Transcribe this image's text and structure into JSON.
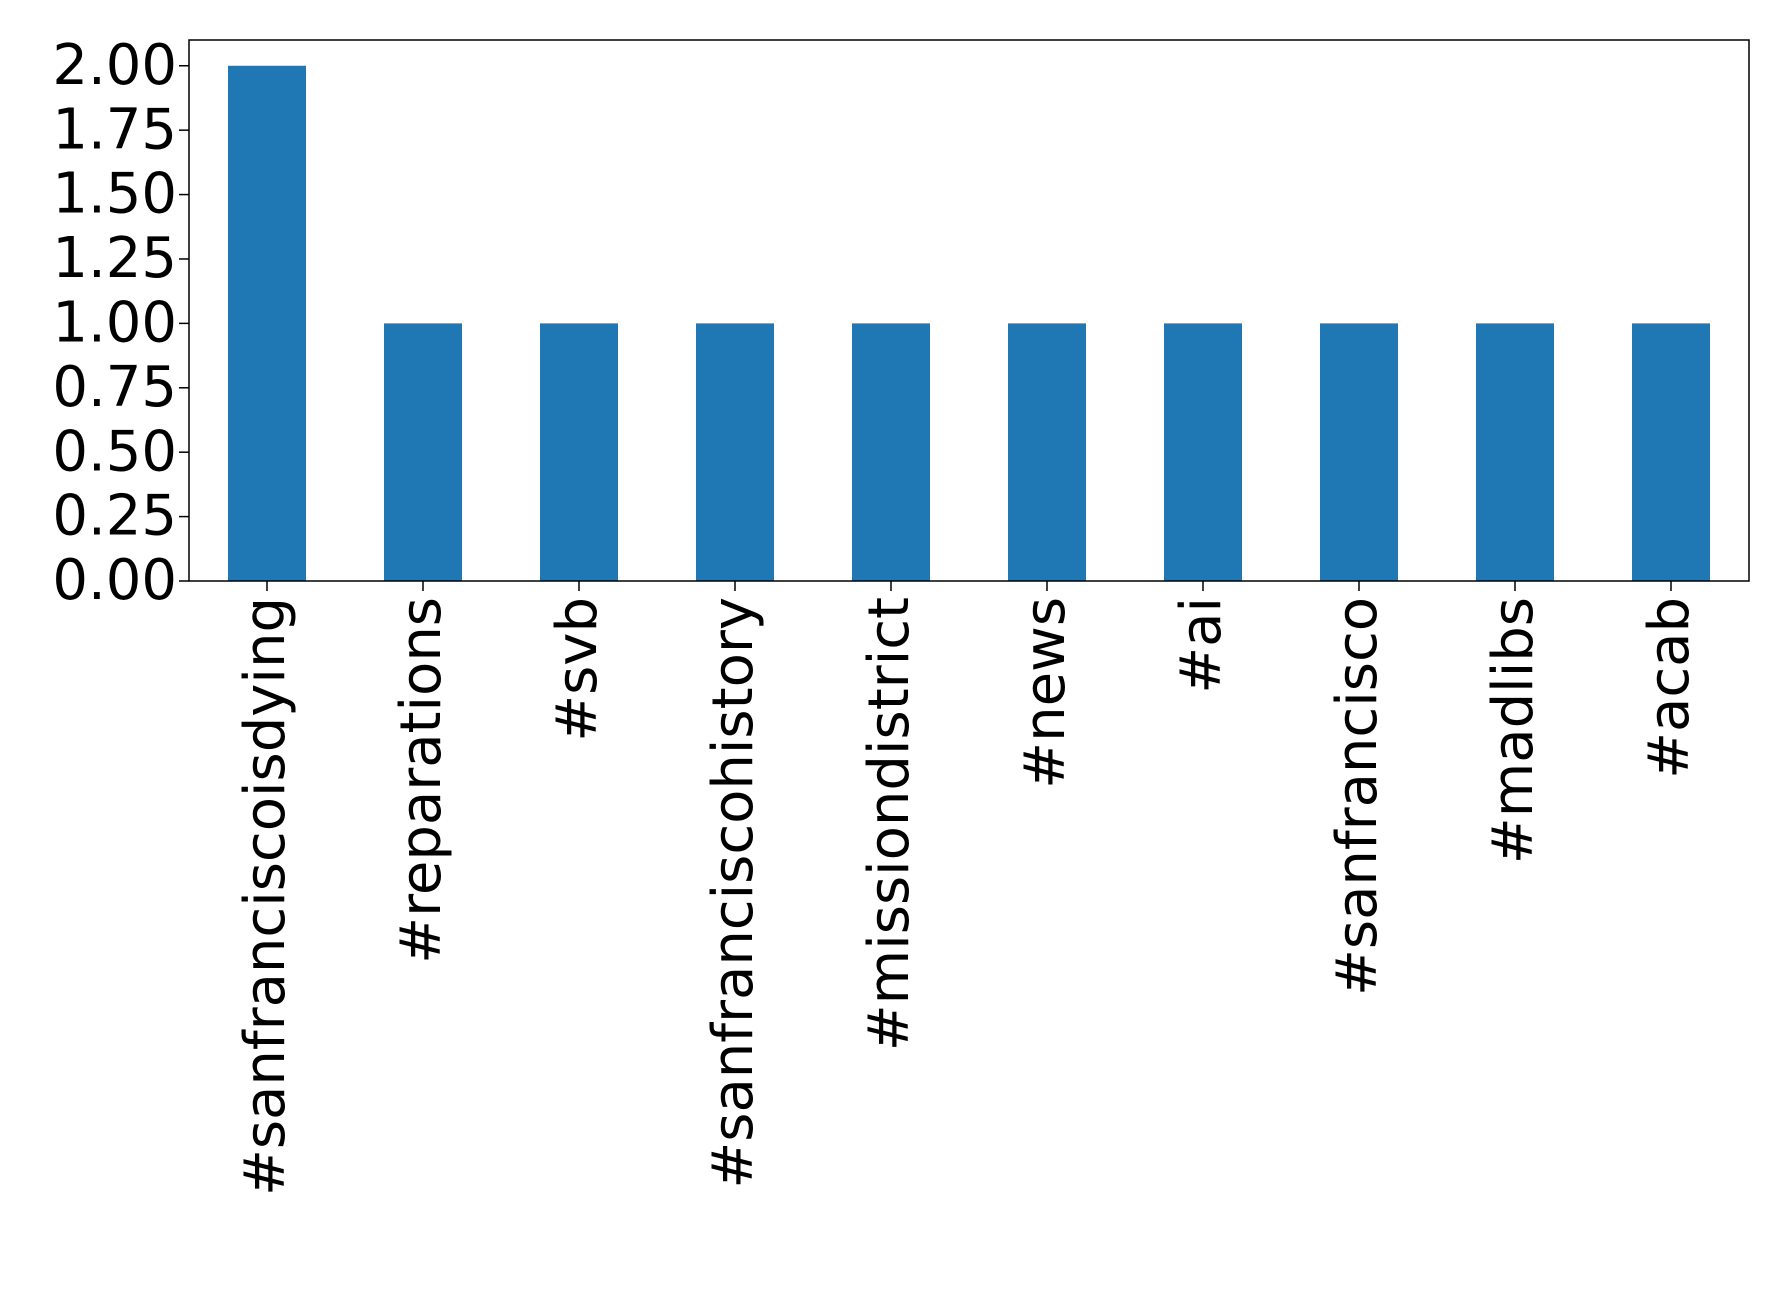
{
  "chart_data": {
    "type": "bar",
    "categories": [
      "#sanfranciscoisdying",
      "#reparations",
      "#svb",
      "#sanfranciscohistory",
      "#missiondistrict",
      "#news",
      "#ai",
      "#sanfrancisco",
      "#madlibs",
      "#acab"
    ],
    "values": [
      2,
      1,
      1,
      1,
      1,
      1,
      1,
      1,
      1,
      1
    ],
    "color": "#1f77b4",
    "ylim": [
      0,
      2.1
    ],
    "yticks": [
      {
        "value": 0,
        "label": "0.00"
      },
      {
        "value": 0.25,
        "label": "0.25"
      },
      {
        "value": 0.5,
        "label": "0.50"
      },
      {
        "value": 0.75,
        "label": "0.75"
      },
      {
        "value": 1,
        "label": "1.00"
      },
      {
        "value": 1.25,
        "label": "1.25"
      },
      {
        "value": 1.5,
        "label": "1.50"
      },
      {
        "value": 1.75,
        "label": "1.75"
      },
      {
        "value": 2,
        "label": "2.00"
      }
    ],
    "grid": false
  }
}
